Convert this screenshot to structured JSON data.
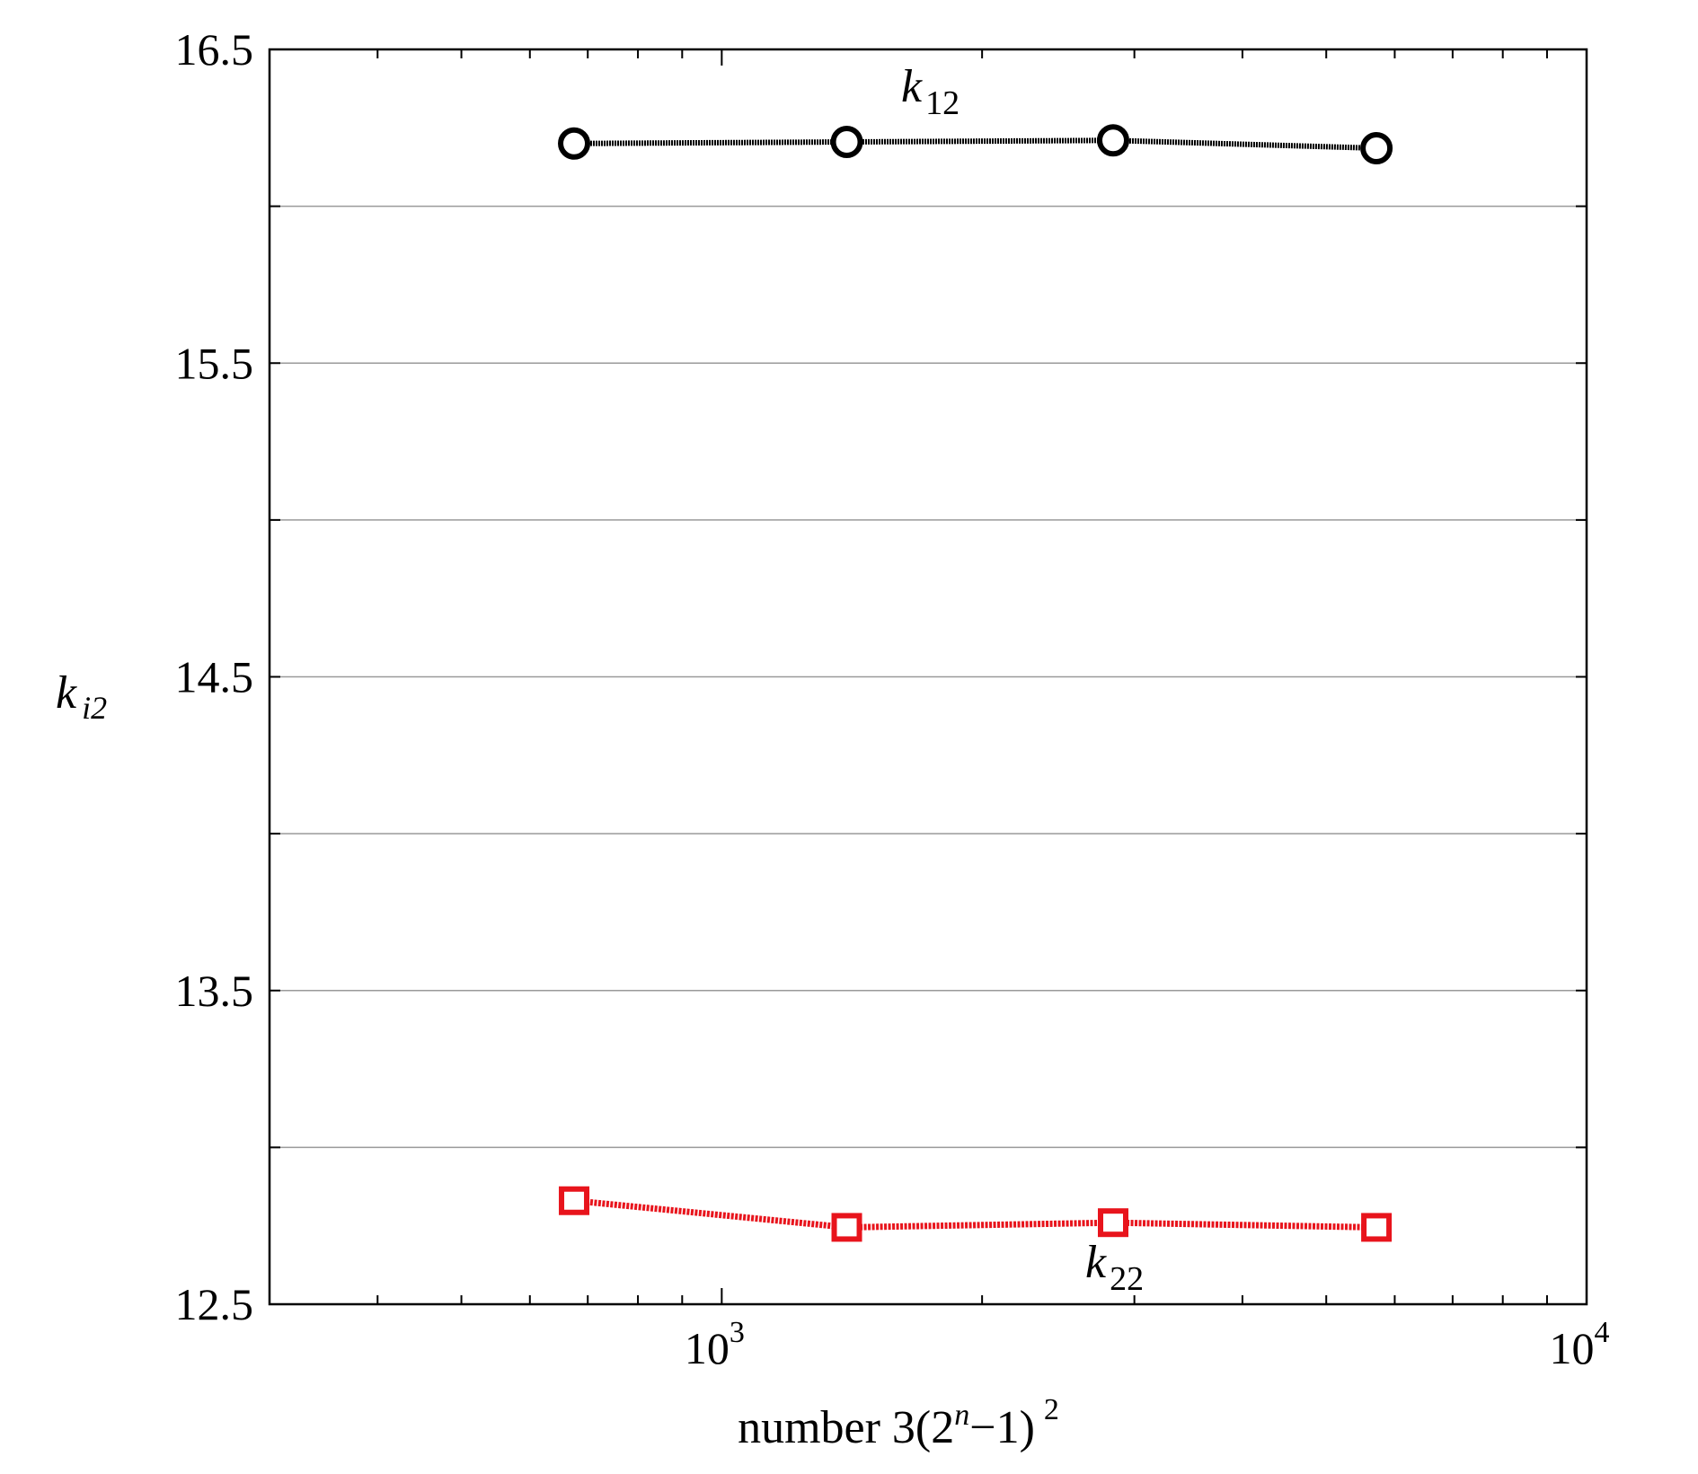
{
  "chart_data": {
    "type": "line",
    "title": "",
    "xlabel": {
      "prefix": "number 3(2",
      "exponent_var": "n",
      "middle": "−1)",
      "exponent": "2"
    },
    "ylabel": {
      "base": "k",
      "subscript": "i2"
    },
    "x_scale": "log",
    "xlim": [
      300,
      10000
    ],
    "ylim": [
      12.5,
      16.5
    ],
    "x_ticks": [
      {
        "value": 1000,
        "base": "10",
        "exp": "3"
      },
      {
        "value": 10000,
        "base": "10",
        "exp": "4"
      }
    ],
    "y_ticks": [
      12.5,
      13.0,
      13.5,
      14.0,
      14.5,
      15.0,
      15.5,
      16.0,
      16.5
    ],
    "y_tick_labels": [
      "12.5",
      "",
      "13.5",
      "",
      "14.5",
      "",
      "15.5",
      "",
      "16.5"
    ],
    "grid": {
      "horizontal": true,
      "vertical": false
    },
    "series": [
      {
        "label_base": "k",
        "label_sub": "12",
        "color": "#000000",
        "marker": "circle",
        "x": [
          675,
          1395,
          2835,
          5715
        ],
        "y": [
          16.2,
          16.205,
          16.21,
          16.185
        ]
      },
      {
        "label_base": "k",
        "label_sub": "22",
        "color": "#e8141c",
        "marker": "square",
        "x": [
          675,
          1395,
          2835,
          5715
        ],
        "y": [
          12.83,
          12.745,
          12.76,
          12.745
        ]
      }
    ]
  }
}
